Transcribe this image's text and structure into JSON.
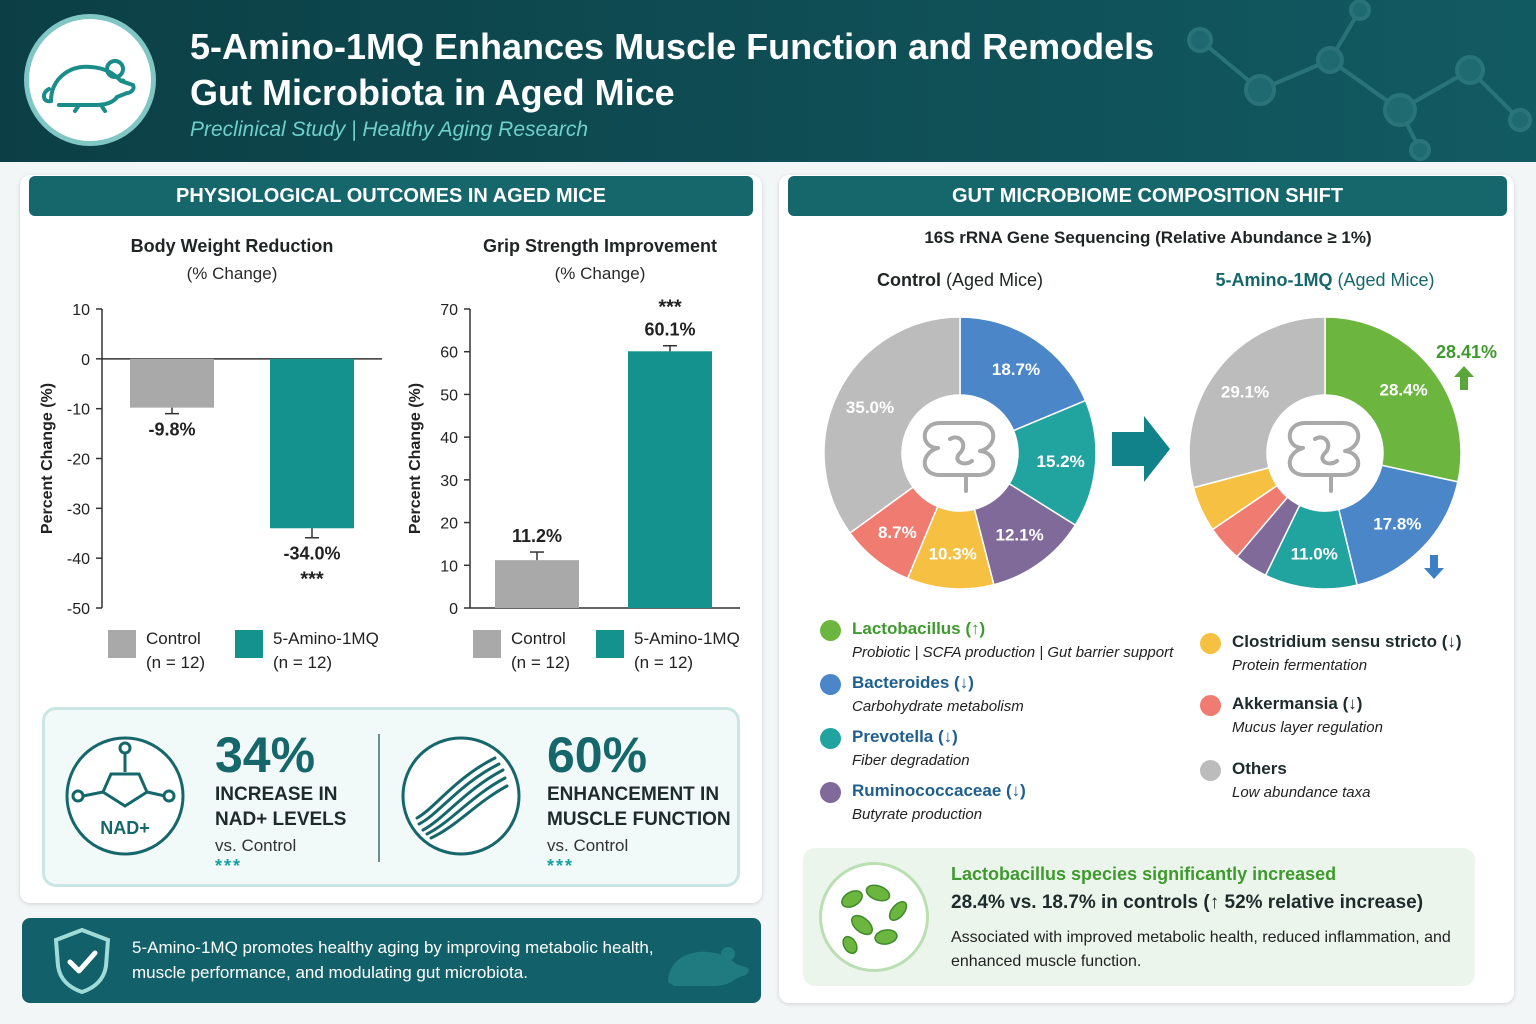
{
  "header": {
    "title_line1": "5-Amino-1MQ Enhances Muscle Function and Remodels",
    "title_line2": "Gut Microbiota in Aged Mice",
    "subtitle": "Preclinical Study | Healthy Aging Research"
  },
  "left_panel": {
    "heading": "PHYSIOLOGICAL OUTCOMES IN AGED MICE"
  },
  "chart_data": [
    {
      "type": "bar",
      "title": "Body Weight Reduction",
      "subtitle": "(% Change)",
      "ylabel": "Percent Change (%)",
      "xlabel": "",
      "ylim": [
        -50,
        10
      ],
      "yticks": [
        10,
        0,
        -10,
        -20,
        -30,
        -40,
        -50
      ],
      "categories": [
        "Control",
        "5-Amino-1MQ"
      ],
      "values": [
        -9.8,
        -34.0
      ],
      "errors": [
        1.2,
        1.9
      ],
      "data_labels": [
        "-9.8%",
        "-34.0%"
      ],
      "significance": [
        "",
        "***"
      ],
      "legend": [
        {
          "name": "Control",
          "n": "(n = 12)",
          "color": "#a9a9a9"
        },
        {
          "name": "5-Amino-1MQ",
          "n": "(n = 12)",
          "color": "#14928e"
        }
      ]
    },
    {
      "type": "bar",
      "title": "Grip Strength Improvement",
      "subtitle": "(% Change)",
      "ylabel": "Percent Change (%)",
      "xlabel": "",
      "ylim": [
        0,
        70
      ],
      "yticks": [
        70,
        60,
        50,
        40,
        30,
        20,
        10,
        0
      ],
      "categories": [
        "Control",
        "5-Amino-1MQ"
      ],
      "values": [
        11.2,
        60.1
      ],
      "errors": [
        1.9,
        1.3
      ],
      "data_labels": [
        "11.2%",
        "60.1%"
      ],
      "significance": [
        "",
        "***"
      ],
      "legend": [
        {
          "name": "Control",
          "n": "(n = 12)",
          "color": "#a9a9a9"
        },
        {
          "name": "5-Amino-1MQ",
          "n": "(n = 12)",
          "color": "#14928e"
        }
      ]
    },
    {
      "type": "pie",
      "title": "Control",
      "title_suffix": "(Aged Mice)",
      "slices": [
        {
          "name": "Bacteroides",
          "value": 18.7,
          "label": "18.7%",
          "color": "#4a86c8"
        },
        {
          "name": "Prevotella",
          "value": 15.2,
          "label": "15.2%",
          "color": "#21a3a0"
        },
        {
          "name": "Ruminococcaceae",
          "value": 12.1,
          "label": "12.1%",
          "color": "#7f6a9a"
        },
        {
          "name": "Clostridium sensu stricto",
          "value": 10.3,
          "label": "10.3%",
          "color": "#f6c143"
        },
        {
          "name": "Akkermansia",
          "value": 8.7,
          "label": "8.7%",
          "color": "#f07b70"
        },
        {
          "name": "Others",
          "value": 35.0,
          "label": "35.0%",
          "color": "#bcbcbc"
        }
      ]
    },
    {
      "type": "pie",
      "title": "5-Amino-1MQ",
      "title_suffix": "(Aged Mice)",
      "slices": [
        {
          "name": "Lactobacillus",
          "value": 28.4,
          "label": "28.4%",
          "color": "#6cb63f"
        },
        {
          "name": "Bacteroides",
          "value": 17.8,
          "label": "17.8%",
          "color": "#4a86c8"
        },
        {
          "name": "Prevotella",
          "value": 11.0,
          "label": "11.0%",
          "color": "#21a3a0"
        },
        {
          "name": "Ruminococcaceae",
          "value": 4.0,
          "label": "",
          "color": "#7f6a9a"
        },
        {
          "name": "Akkermansia",
          "value": 4.3,
          "label": "",
          "color": "#f07b70"
        },
        {
          "name": "Clostridium sensu stricto",
          "value": 5.4,
          "label": "",
          "color": "#f6c143"
        },
        {
          "name": "Others",
          "value": 29.1,
          "label": "29.1%",
          "color": "#bcbcbc"
        }
      ],
      "callout": "28.41%"
    }
  ],
  "stats": {
    "nad": {
      "value": "34%",
      "line1": "INCREASE IN",
      "line2": "NAD+ LEVELS",
      "vs": "vs. Control",
      "stars": "***",
      "icon_label": "NAD+"
    },
    "muscle": {
      "value": "60%",
      "line1": "ENHANCEMENT IN",
      "line2": "MUSCLE FUNCTION",
      "vs": "vs. Control",
      "stars": "***"
    }
  },
  "banner": {
    "text": "5-Amino-1MQ promotes healthy aging by improving metabolic health, muscle performance, and modulating gut microbiota."
  },
  "right_panel": {
    "heading": "GUT MICROBIOME COMPOSITION SHIFT",
    "seq_title": "16S rRNA Gene Sequencing (Relative Abundance ≥ 1%)"
  },
  "microbe_legend": [
    {
      "name": "Lactobacillus (↑)",
      "desc": "Probiotic | SCFA production | Gut barrier support",
      "color": "#6cb63f",
      "text_color": "#3f9a2e"
    },
    {
      "name": "Bacteroides (↓)",
      "desc": "Carbohydrate metabolism",
      "color": "#4a86c8",
      "text_color": "#1e5f8f"
    },
    {
      "name": "Prevotella (↓)",
      "desc": "Fiber degradation",
      "color": "#21a3a0",
      "text_color": "#1e5f8f"
    },
    {
      "name": "Ruminococcaceae (↓)",
      "desc": "Butyrate production",
      "color": "#7f6a9a",
      "text_color": "#1e5f8f"
    },
    {
      "name": "Clostridium sensu stricto (↓)",
      "desc": "Protein fermentation",
      "color": "#f6c143",
      "text_color": "#1d2b2b"
    },
    {
      "name": "Akkermansia (↓)",
      "desc": "Mucus layer regulation",
      "color": "#f07b70",
      "text_color": "#1d2b2b"
    },
    {
      "name": "Others",
      "desc": "Low abundance taxa",
      "color": "#bcbcbc",
      "text_color": "#1d2b2b"
    }
  ],
  "lacto_box": {
    "heading": "Lactobacillus species significantly increased",
    "values": "28.4% vs. 18.7% in controls (↑ 52% relative increase)",
    "desc": "Associated with improved metabolic health, reduced inflammation, and enhanced muscle function."
  }
}
